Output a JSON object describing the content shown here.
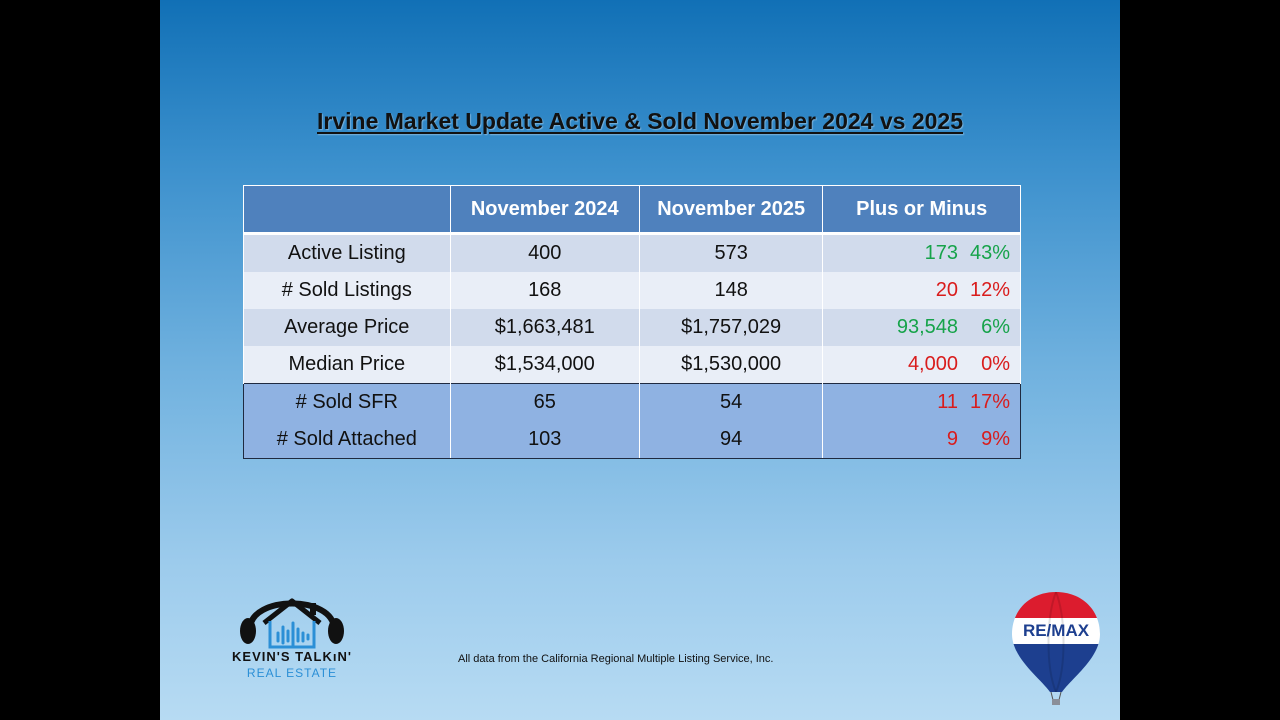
{
  "title": "Irvine Market Update Active & Sold November 2024 vs 2025",
  "table": {
    "headers": [
      "",
      "November 2024",
      "November 2025",
      "Plus or Minus"
    ],
    "rows": [
      {
        "label": "Active Listing",
        "y2024": "400",
        "y2025": "573",
        "diff": "173",
        "pct": "43%",
        "trend": "up"
      },
      {
        "label": "# Sold Listings",
        "y2024": "168",
        "y2025": "148",
        "diff": "20",
        "pct": "12%",
        "trend": "down"
      },
      {
        "label": "Average Price",
        "y2024": "$1,663,481",
        "y2025": "$1,757,029",
        "diff": "93,548",
        "pct": "6%",
        "trend": "up"
      },
      {
        "label": "Median Price",
        "y2024": "$1,534,000",
        "y2025": "$1,530,000",
        "diff": "4,000",
        "pct": "0%",
        "trend": "down"
      },
      {
        "label": "# Sold SFR",
        "y2024": "65",
        "y2025": "54",
        "diff": "11",
        "pct": "17%",
        "trend": "down"
      },
      {
        "label": "# Sold Attached",
        "y2024": "103",
        "y2025": "94",
        "diff": "9",
        "pct": "9%",
        "trend": "down"
      }
    ]
  },
  "colors": {
    "positive": "#16a34a",
    "negative": "#d91c1c",
    "header": "#4f81bd"
  },
  "source_note": "All data from the California Regional Multiple Listing Service, Inc.",
  "logos": {
    "kevin": {
      "line1": "KEVIN'S TALKıN'",
      "line2": "REAL ESTATE",
      "icon": "house-headphones-icon"
    },
    "remax": {
      "text": "RE/MAX",
      "icon": "hot-air-balloon-icon"
    }
  }
}
